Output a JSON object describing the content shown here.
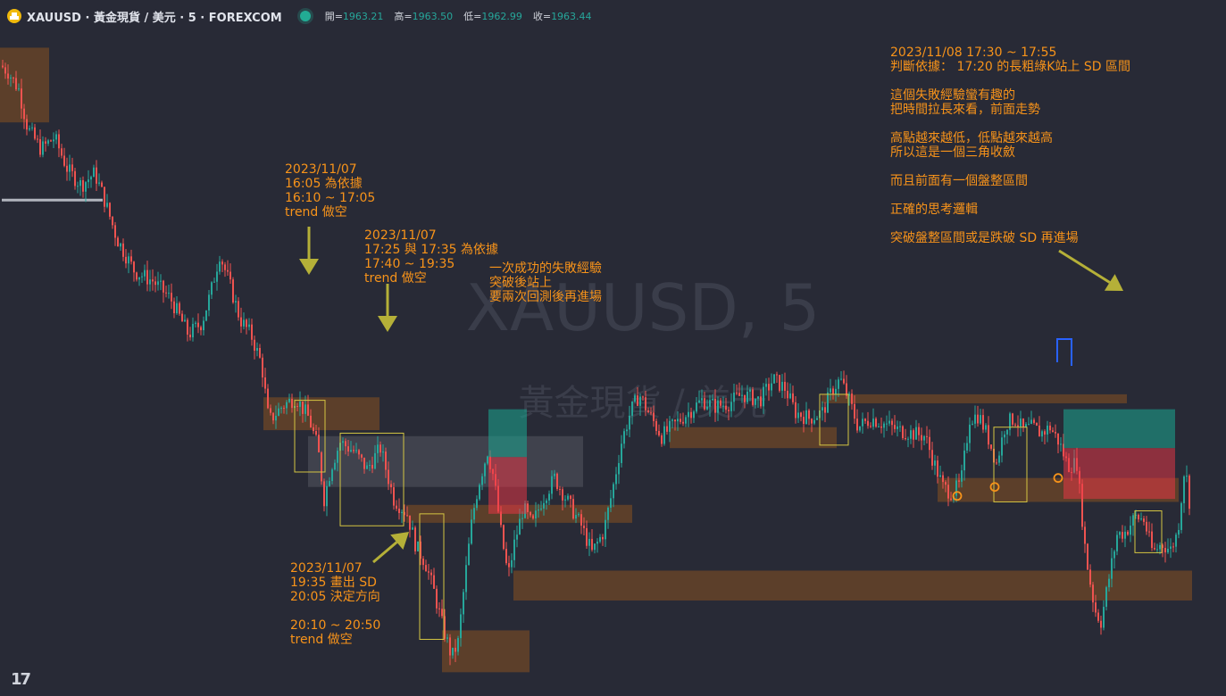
{
  "header": {
    "symbol": "XAUUSD · 黃金現貨 / 美元 · 5 · FOREXCOM",
    "ohlc": [
      {
        "label": "開",
        "value": "1963.21"
      },
      {
        "label": "高",
        "value": "1963.50"
      },
      {
        "label": "低",
        "value": "1962.99"
      },
      {
        "label": "收",
        "value": "1963.44"
      }
    ]
  },
  "watermark": {
    "symbol": "XAUUSD, 5",
    "name": "黃金現貨 / 美元"
  },
  "colors": {
    "background": "#282a36",
    "up": "#26a69a",
    "down": "#ef5350",
    "zone": "#6b4526",
    "annotation": "#f7931a",
    "box": "#d4c542",
    "arrow": "#b5b038"
  },
  "annotations": [
    "2023/11/07\n16:05 為依據\n16:10 ~ 17:05\ntrend 做空",
    "2023/11/07\n17:25 與 17:35 為依據\n17:40 ~ 19:35\ntrend 做空",
    "一次成功的失敗經驗\n突破後站上\n要兩次回測後再進場",
    "2023/11/07\n19:35 畫出 SD\n20:05 決定方向\n\n20:10 ~ 20:50\ntrend 做空",
    "2023/11/08 17:30 ~ 17:55\n判斷依據： 17:20 的長粗綠K站上 SD 區間\n\n這個失敗經驗蠻有趣的\n把時間拉長來看，前面走勢\n\n高點越來越低，低點越來越高\n所以這是一個三角收斂\n\n而且前面有一個盤整區間\n\n正確的思考邏輯\n\n突破盤整區間或是跌破 SD 再進場"
  ],
  "chart_data": {
    "type": "line",
    "series": [
      {
        "style": "candlestick",
        "path": [
          [
            0,
            1962.2
          ],
          [
            8,
            1962.0
          ],
          [
            20,
            1961.4
          ],
          [
            30,
            1960.1
          ],
          [
            45,
            1959.4
          ],
          [
            60,
            1959.8
          ],
          [
            75,
            1958.7
          ],
          [
            90,
            1958.2
          ],
          [
            105,
            1958.6
          ],
          [
            115,
            1957.8
          ],
          [
            130,
            1956.4
          ],
          [
            150,
            1955.3
          ],
          [
            170,
            1955.0
          ],
          [
            190,
            1954.4
          ],
          [
            210,
            1953.2
          ],
          [
            225,
            1953.6
          ],
          [
            235,
            1954.6
          ],
          [
            245,
            1955.9
          ],
          [
            255,
            1955.0
          ],
          [
            268,
            1953.7
          ],
          [
            280,
            1953.2
          ],
          [
            292,
            1952.2
          ],
          [
            300,
            1950.3
          ],
          [
            315,
            1950.8
          ],
          [
            330,
            1951.1
          ],
          [
            345,
            1950.4
          ],
          [
            355,
            1949.4
          ],
          [
            362,
            1947.7
          ],
          [
            370,
            1948.8
          ],
          [
            380,
            1949.6
          ],
          [
            395,
            1949.3
          ],
          [
            410,
            1948.7
          ],
          [
            425,
            1949.4
          ],
          [
            440,
            1947.7
          ],
          [
            455,
            1947.2
          ],
          [
            465,
            1946.1
          ],
          [
            475,
            1945.6
          ],
          [
            485,
            1944.6
          ],
          [
            495,
            1943.4
          ],
          [
            505,
            1942.4
          ],
          [
            512,
            1942.9
          ],
          [
            520,
            1945.1
          ],
          [
            528,
            1947.1
          ],
          [
            535,
            1948.2
          ],
          [
            545,
            1949.3
          ],
          [
            552,
            1948.4
          ],
          [
            560,
            1946.6
          ],
          [
            568,
            1945.1
          ],
          [
            575,
            1946.2
          ],
          [
            585,
            1947.4
          ],
          [
            595,
            1946.8
          ],
          [
            605,
            1947.6
          ],
          [
            620,
            1948.4
          ],
          [
            635,
            1947.6
          ],
          [
            650,
            1946.8
          ],
          [
            662,
            1945.9
          ],
          [
            675,
            1946.6
          ],
          [
            685,
            1948.0
          ],
          [
            695,
            1949.6
          ],
          [
            705,
            1950.6
          ],
          [
            715,
            1951.2
          ],
          [
            725,
            1950.6
          ],
          [
            740,
            1949.8
          ],
          [
            755,
            1950.2
          ],
          [
            770,
            1950.6
          ],
          [
            785,
            1951.0
          ],
          [
            800,
            1950.8
          ],
          [
            815,
            1950.9
          ],
          [
            830,
            1951.2
          ],
          [
            850,
            1951.0
          ],
          [
            865,
            1951.7
          ],
          [
            878,
            1951.4
          ],
          [
            890,
            1950.6
          ],
          [
            905,
            1950.4
          ],
          [
            920,
            1950.6
          ],
          [
            932,
            1951.4
          ],
          [
            940,
            1951.7
          ],
          [
            950,
            1951.0
          ],
          [
            960,
            1950.1
          ],
          [
            975,
            1950.4
          ],
          [
            990,
            1950.2
          ],
          [
            1005,
            1950.0
          ],
          [
            1020,
            1949.9
          ],
          [
            1035,
            1949.8
          ],
          [
            1045,
            1948.9
          ],
          [
            1055,
            1948.1
          ],
          [
            1065,
            1947.9
          ],
          [
            1075,
            1948.2
          ],
          [
            1085,
            1950.4
          ],
          [
            1095,
            1950.5
          ],
          [
            1105,
            1949.8
          ],
          [
            1115,
            1948.9
          ],
          [
            1125,
            1950.2
          ],
          [
            1135,
            1950.4
          ],
          [
            1145,
            1950.0
          ],
          [
            1155,
            1950.1
          ],
          [
            1165,
            1949.9
          ],
          [
            1175,
            1950.1
          ],
          [
            1185,
            1949.6
          ],
          [
            1195,
            1948.8
          ],
          [
            1205,
            1948.9
          ],
          [
            1215,
            1945.8
          ],
          [
            1225,
            1944.0
          ],
          [
            1232,
            1943.6
          ],
          [
            1240,
            1944.9
          ],
          [
            1250,
            1946.5
          ],
          [
            1260,
            1946.6
          ],
          [
            1270,
            1947.1
          ],
          [
            1280,
            1947.0
          ],
          [
            1290,
            1945.9
          ],
          [
            1300,
            1946.2
          ],
          [
            1310,
            1946.0
          ],
          [
            1318,
            1946.6
          ],
          [
            1325,
            1948.6
          ],
          [
            1330,
            1948.2
          ],
          [
            1333,
            1946.5
          ]
        ]
      }
    ],
    "ylim": [
      1942,
      1963.5
    ],
    "supply_demand_zones": [
      {
        "x": [
          0,
          55
        ],
        "y": [
          1960.3,
          1962.8
        ]
      },
      {
        "x": [
          295,
          425
        ],
        "y": [
          1951.1,
          1950.0
        ]
      },
      {
        "x": [
          455,
          708
        ],
        "y": [
          1947.5,
          1946.9
        ]
      },
      {
        "x": [
          575,
          1335
        ],
        "y": [
          1945.3,
          1944.3
        ]
      },
      {
        "x": [
          495,
          593
        ],
        "y": [
          1943.3,
          1941.9
        ]
      },
      {
        "x": [
          750,
          937
        ],
        "y": [
          1950.1,
          1949.4
        ]
      },
      {
        "x": [
          920,
          1262
        ],
        "y": [
          1951.2,
          1950.9
        ]
      },
      {
        "x": [
          1050,
          1320
        ],
        "y": [
          1948.4,
          1947.6
        ]
      }
    ],
    "highlight_boxes": [
      {
        "x": [
          330,
          364
        ],
        "y": [
          1951.0,
          1948.6
        ]
      },
      {
        "x": [
          381,
          452
        ],
        "y": [
          1949.9,
          1946.8
        ]
      },
      {
        "x": [
          470,
          497
        ],
        "y": [
          1947.2,
          1943.0
        ]
      },
      {
        "x": [
          918,
          950
        ],
        "y": [
          1951.2,
          1949.5
        ]
      },
      {
        "x": [
          1113,
          1150
        ],
        "y": [
          1950.1,
          1947.6
        ]
      },
      {
        "x": [
          1271,
          1301
        ],
        "y": [
          1947.3,
          1945.9
        ]
      }
    ],
    "grey_ranges": [
      {
        "x": [
          345,
          653
        ],
        "y": [
          1949.8,
          1948.1
        ]
      },
      {
        "x": [
          2,
          115
        ],
        "y": [
          1957.7,
          1957.7
        ]
      }
    ],
    "trade_positions": [
      {
        "x": [
          547,
          590
        ],
        "target": [
          1950.7,
          1949.1
        ],
        "stop": [
          1949.1,
          1947.2
        ]
      },
      {
        "x": [
          1191,
          1316
        ],
        "target": [
          1950.7,
          1949.4
        ],
        "stop": [
          1949.4,
          1947.7
        ]
      }
    ],
    "markers": [
      [
        1072,
        1947.8
      ],
      [
        1114,
        1948.1
      ],
      [
        1185,
        1948.4
      ]
    ]
  }
}
